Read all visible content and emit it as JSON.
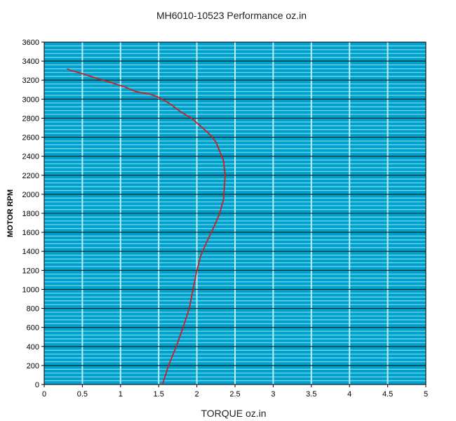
{
  "chart_data": {
    "type": "line",
    "title": "MH6010-10523   Performance oz.in",
    "xlabel": "TORQUE  oz.in",
    "ylabel": "MOTOR RPM",
    "xlim": [
      0,
      5
    ],
    "ylim": [
      0,
      3600
    ],
    "x_ticks": [
      "0",
      "0.5",
      "1",
      "1.5",
      "2",
      "2.5",
      "3",
      "3.5",
      "4",
      "4.5",
      "5"
    ],
    "y_ticks": [
      "0",
      "200",
      "400",
      "600",
      "800",
      "1000",
      "1200",
      "1400",
      "1600",
      "1800",
      "2000",
      "2200",
      "2400",
      "2600",
      "2800",
      "3000",
      "3200",
      "3400",
      "3600"
    ],
    "grid": true,
    "colors": {
      "background": "#00a0cc",
      "minor_grid": "#6fd8ee",
      "major_grid": "#1a1a1a",
      "vertical_grid": "#bdeff8",
      "curve": "#cc1f1f"
    },
    "series": [
      {
        "x": [
          1.55,
          1.63,
          1.73,
          1.82,
          1.9,
          1.95,
          2.0,
          2.05,
          2.13,
          2.22,
          2.3,
          2.35,
          2.37,
          2.35,
          2.3,
          2.25,
          2.18,
          2.1,
          2.0,
          1.93,
          1.8,
          1.65,
          1.5,
          1.4,
          1.2,
          1.05,
          0.85,
          0.65,
          0.45,
          0.35,
          0.3
        ],
        "y": [
          0,
          200,
          400,
          600,
          800,
          1000,
          1200,
          1350,
          1500,
          1650,
          1800,
          1950,
          2200,
          2350,
          2450,
          2550,
          2620,
          2680,
          2750,
          2800,
          2860,
          2950,
          3020,
          3050,
          3080,
          3130,
          3180,
          3230,
          3280,
          3300,
          3320
        ]
      }
    ]
  }
}
